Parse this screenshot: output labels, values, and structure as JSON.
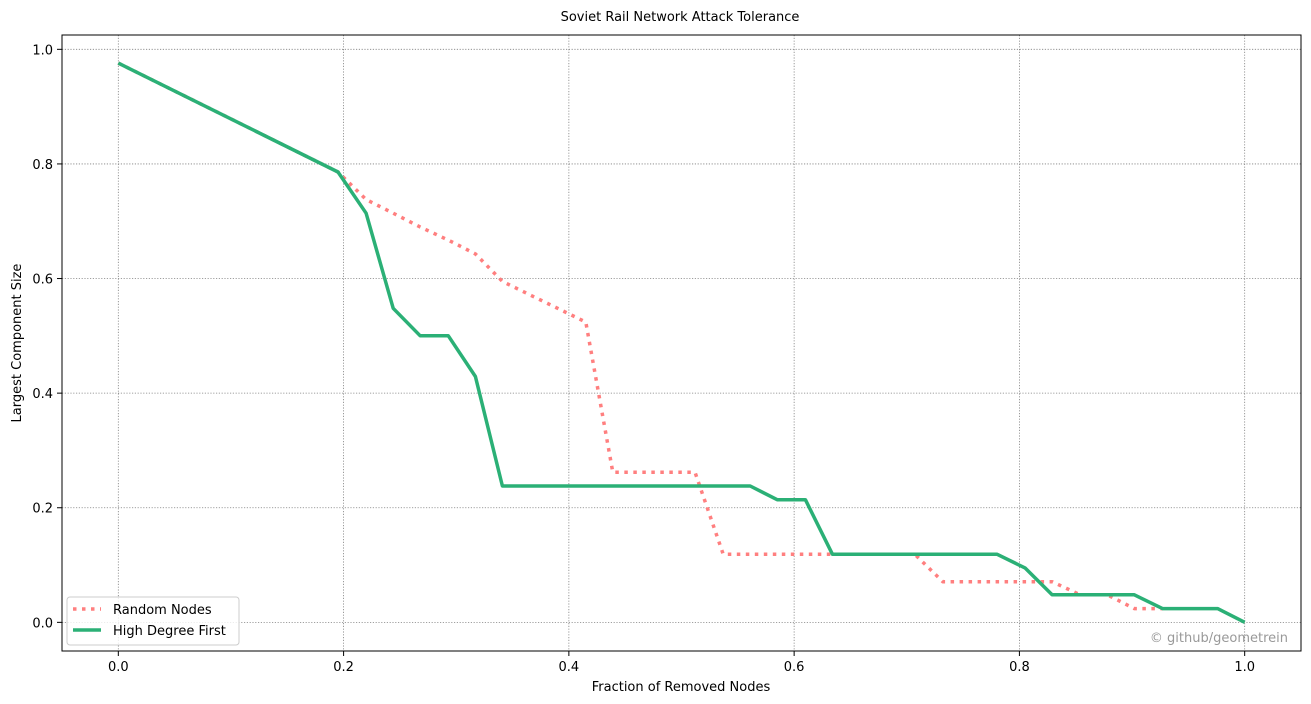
{
  "chart_data": {
    "type": "line",
    "title": "Soviet Rail Network Attack Tolerance",
    "xlabel": "Fraction of Removed Nodes",
    "ylabel": "Largest Component Size",
    "xlim": [
      -0.05,
      1.05
    ],
    "ylim": [
      -0.05,
      1.025
    ],
    "grid": true,
    "legend_position": "lower-left",
    "xticks": [
      "0.0",
      "0.2",
      "0.4",
      "0.6",
      "0.8",
      "1.0"
    ],
    "yticks": [
      "0.0",
      "0.2",
      "0.4",
      "0.6",
      "0.8",
      "1.0"
    ],
    "series": [
      {
        "name": "Random Nodes",
        "color": "#ff7f7f",
        "style": "dotted",
        "x": [
          0.0,
          0.195,
          0.22,
          0.244,
          0.268,
          0.293,
          0.317,
          0.341,
          0.366,
          0.39,
          0.415,
          0.439,
          0.463,
          0.488,
          0.512,
          0.537,
          0.561,
          0.585,
          0.61,
          0.634,
          0.659,
          0.683,
          0.707,
          0.732,
          0.756,
          0.78,
          0.805,
          0.829,
          0.854,
          0.878,
          0.902,
          0.927
        ],
        "y": [
          0.976,
          0.786,
          0.738,
          0.714,
          0.69,
          0.667,
          0.643,
          0.595,
          0.571,
          0.548,
          0.524,
          0.262,
          0.262,
          0.262,
          0.262,
          0.119,
          0.119,
          0.119,
          0.119,
          0.119,
          0.119,
          0.119,
          0.119,
          0.071,
          0.071,
          0.071,
          0.071,
          0.071,
          0.048,
          0.048,
          0.024,
          0.024
        ]
      },
      {
        "name": "High Degree First",
        "color": "#2bb076",
        "style": "solid",
        "x": [
          0.0,
          0.195,
          0.22,
          0.244,
          0.268,
          0.293,
          0.317,
          0.341,
          0.366,
          0.39,
          0.415,
          0.439,
          0.463,
          0.488,
          0.512,
          0.537,
          0.561,
          0.585,
          0.61,
          0.634,
          0.659,
          0.683,
          0.707,
          0.732,
          0.756,
          0.78,
          0.805,
          0.829,
          0.854,
          0.878,
          0.902,
          0.927,
          0.951,
          0.976,
          1.0
        ],
        "y": [
          0.976,
          0.786,
          0.714,
          0.548,
          0.5,
          0.5,
          0.429,
          0.238,
          0.238,
          0.238,
          0.238,
          0.238,
          0.238,
          0.238,
          0.238,
          0.238,
          0.238,
          0.214,
          0.214,
          0.119,
          0.119,
          0.119,
          0.119,
          0.119,
          0.119,
          0.119,
          0.095,
          0.048,
          0.048,
          0.048,
          0.048,
          0.024,
          0.024,
          0.024,
          0.0
        ]
      }
    ],
    "watermark": "© github/geometrein"
  }
}
